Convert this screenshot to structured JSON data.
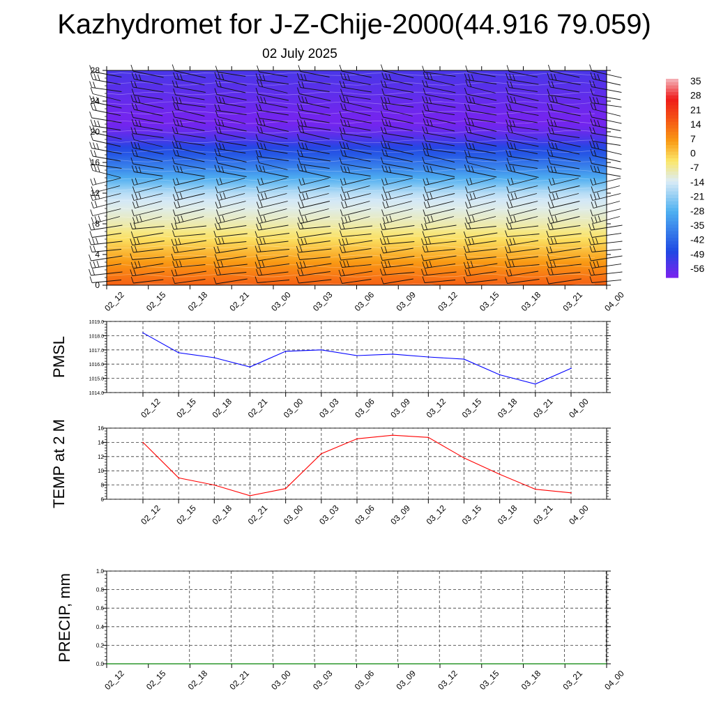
{
  "title": "Kazhydromet for J-Z-Chije-2000(44.916 79.059)",
  "date": "02 July 2025",
  "colorbar": {
    "labels": [
      "35",
      "28",
      "21",
      "14",
      "7",
      "0",
      "-7",
      "-14",
      "-21",
      "-28",
      "-35",
      "-42",
      "-49",
      "-56"
    ],
    "colors": [
      "#f4b8bf",
      "#ef1b1b",
      "#f55314",
      "#f99a14",
      "#fbe76a",
      "#dcecf6",
      "#4fb1f1",
      "#1f49e3",
      "#7a22ef"
    ]
  },
  "chart_data": [
    {
      "type": "heatmap",
      "name": "vertical cross-section (temperature with wind barbs)",
      "x_tick_labels": [
        "02_12",
        "02_15",
        "02_18",
        "02_21",
        "03_00",
        "03_03",
        "03_06",
        "03_09",
        "03_12",
        "03_15",
        "03_18",
        "03_21",
        "04_00"
      ],
      "y_tick_labels": [
        "0",
        "4",
        "8",
        "12",
        "16",
        "20",
        "24",
        "28"
      ],
      "ylim": [
        0,
        28
      ],
      "levels": [
        0,
        1,
        2,
        3,
        4,
        5,
        6,
        7,
        8,
        9,
        10,
        11,
        12,
        13,
        14,
        15,
        16,
        17,
        18,
        19,
        20,
        21,
        22,
        23,
        24,
        25,
        26,
        27,
        28
      ],
      "temperature_profile": [
        14,
        11,
        8,
        5,
        2,
        -1,
        -4,
        -7,
        -10,
        -12,
        -14,
        -16,
        -19,
        -25,
        -31,
        -37,
        -42,
        -47,
        -51,
        -56,
        -60,
        -62,
        -62,
        -61,
        -60,
        -59,
        -58,
        -57,
        -56
      ],
      "wind_barbs": true,
      "colorbar_ticks": [
        35,
        28,
        21,
        14,
        7,
        0,
        -7,
        -14,
        -21,
        -28,
        -35,
        -42,
        -49,
        -56
      ]
    },
    {
      "type": "line",
      "ylabel": "PMSL",
      "x_tick_labels": [
        "02_12",
        "02_15",
        "02_18",
        "02_21",
        "03_00",
        "03_03",
        "03_06",
        "03_09",
        "03_12",
        "03_15",
        "03_18",
        "03_21",
        "04_00"
      ],
      "y_tick_labels": [
        "1014.0",
        "1015.0",
        "1016.0",
        "1017.0",
        "1018.0",
        "1019.0"
      ],
      "ylim": [
        1014,
        1019
      ],
      "series": [
        {
          "values": [
            1018.2,
            1016.8,
            1016.45,
            1015.8,
            1016.9,
            1017.0,
            1016.6,
            1016.7,
            1016.5,
            1016.35,
            1015.25,
            1014.6,
            1015.7
          ],
          "color": "#0000ff"
        }
      ],
      "grid": true
    },
    {
      "type": "line",
      "ylabel": "TEMP at 2 M",
      "x_tick_labels": [
        "02_12",
        "02_15",
        "02_18",
        "02_21",
        "03_00",
        "03_03",
        "03_06",
        "03_09",
        "03_12",
        "03_15",
        "03_18",
        "03_21",
        "04_00"
      ],
      "y_tick_labels": [
        "6",
        "8",
        "10",
        "12",
        "14",
        "16"
      ],
      "ylim": [
        6,
        16
      ],
      "series": [
        {
          "values": [
            14.0,
            9.0,
            8.0,
            6.5,
            7.5,
            12.4,
            14.5,
            15.0,
            14.7,
            11.8,
            9.5,
            7.4,
            6.9
          ],
          "color": "#ff0000"
        }
      ],
      "grid": true
    },
    {
      "type": "line",
      "ylabel": "PRECIP, mm",
      "x_tick_labels": [
        "02_12",
        "02_15",
        "02_18",
        "02_21",
        "03_00",
        "03_03",
        "03_06",
        "03_09",
        "03_12",
        "03_15",
        "03_18",
        "03_21",
        "04_00"
      ],
      "y_tick_labels": [
        "0.0",
        "0.2",
        "0.4",
        "0.6",
        "0.8",
        "1.0"
      ],
      "ylim": [
        0,
        1
      ],
      "series": [
        {
          "values": [
            0,
            0,
            0,
            0,
            0,
            0,
            0,
            0,
            0,
            0,
            0,
            0
          ],
          "color": "#008000"
        }
      ],
      "grid": true
    }
  ]
}
